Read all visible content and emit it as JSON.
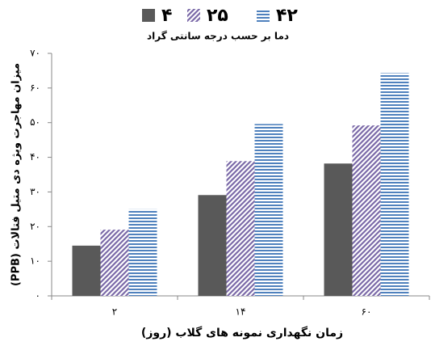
{
  "chart_data": {
    "type": "bar",
    "subtitle": "دما بر حسب درجه سانتی گراد",
    "x_label": "زمان نگهداری نمونه های گلاب (روز)",
    "y_label": "میزان مهاجرت ویژه دی متیل فتالات (PPB)",
    "categories": [
      "۲",
      "۱۴",
      "۶۰"
    ],
    "series": [
      {
        "name": "۴",
        "color": "#595959",
        "pattern": "solid",
        "values": [
          14.5,
          29.1,
          38.2
        ]
      },
      {
        "name": "۲۵",
        "color": "#7b6aa8",
        "pattern": "diagonal",
        "values": [
          19.1,
          38.9,
          49.2
        ]
      },
      {
        "name": "۴۲",
        "color": "#4f81bd",
        "pattern": "horizontal",
        "values": [
          25,
          49.6,
          64.3
        ]
      }
    ],
    "ylim": [
      0,
      70
    ],
    "yticks": [
      {
        "value": 0,
        "label": "۰"
      },
      {
        "value": 10,
        "label": "۱۰"
      },
      {
        "value": 20,
        "label": "۲۰"
      },
      {
        "value": 30,
        "label": "۳۰"
      },
      {
        "value": 40,
        "label": "۴۰"
      },
      {
        "value": 50,
        "label": "۵۰"
      },
      {
        "value": 60,
        "label": "۶۰"
      },
      {
        "value": 70,
        "label": "۷۰"
      }
    ],
    "grid": false
  }
}
